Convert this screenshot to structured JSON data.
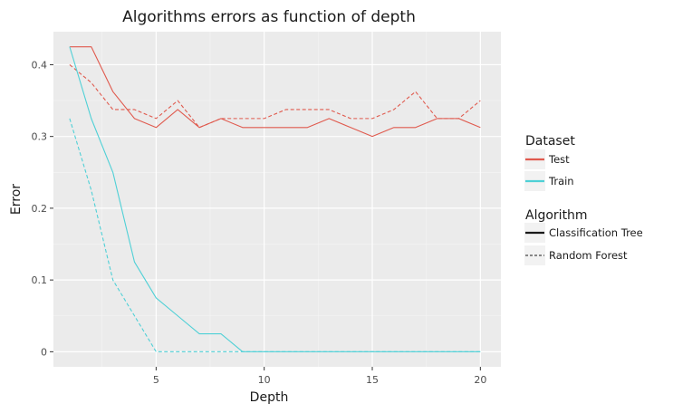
{
  "chart_data": {
    "type": "line",
    "title": "Algorithms errors as function of depth",
    "xlabel": "Depth",
    "ylabel": "Error",
    "xlim": [
      0.25,
      20.95
    ],
    "ylim": [
      -0.021,
      0.446
    ],
    "xticks": [
      5,
      10,
      15,
      20
    ],
    "xtick_labels": [
      "5",
      "10",
      "15",
      "20"
    ],
    "yticks": [
      0,
      0.1,
      0.2,
      0.3,
      0.4
    ],
    "ytick_labels": [
      "0",
      "0.1",
      "0.2",
      "0.3",
      "0.4"
    ],
    "grid": true,
    "legend_position": "right",
    "x": [
      1,
      2,
      3,
      4,
      5,
      6,
      7,
      8,
      9,
      10,
      11,
      12,
      13,
      14,
      15,
      16,
      17,
      18,
      19,
      20
    ],
    "series": [
      {
        "dataset": "Test",
        "algorithm": "Classification Tree",
        "color": "#e05a4e",
        "dash": "solid",
        "values": [
          0.425,
          0.425,
          0.3625,
          0.325,
          0.3125,
          0.3375,
          0.3125,
          0.325,
          0.3125,
          0.3125,
          0.3125,
          0.3125,
          0.325,
          0.3125,
          0.3,
          0.3125,
          0.3125,
          0.325,
          0.325,
          0.3125
        ]
      },
      {
        "dataset": "Test",
        "algorithm": "Random Forest",
        "color": "#e05a4e",
        "dash": "dashed",
        "values": [
          0.4,
          0.375,
          0.3375,
          0.3375,
          0.325,
          0.35,
          0.3125,
          0.325,
          0.325,
          0.325,
          0.3375,
          0.3375,
          0.3375,
          0.325,
          0.325,
          0.3375,
          0.3625,
          0.325,
          0.325,
          0.35
        ]
      },
      {
        "dataset": "Train",
        "algorithm": "Classification Tree",
        "color": "#4fd0d6",
        "dash": "solid",
        "values": [
          0.425,
          0.325,
          0.25,
          0.125,
          0.075,
          0.05,
          0.025,
          0.025,
          0,
          0,
          0,
          0,
          0,
          0,
          0,
          0,
          0,
          0,
          0,
          0
        ]
      },
      {
        "dataset": "Train",
        "algorithm": "Random Forest",
        "color": "#4fd0d6",
        "dash": "dashed",
        "values": [
          0.325,
          0.225,
          0.1,
          0.05,
          0,
          0,
          0,
          0,
          0,
          0,
          0,
          0,
          0,
          0,
          0,
          0,
          0,
          0,
          0,
          0
        ]
      }
    ],
    "legend": {
      "dataset_title": "Dataset",
      "dataset_entries": [
        {
          "label": "Test",
          "color": "#e05a4e"
        },
        {
          "label": "Train",
          "color": "#4fd0d6"
        }
      ],
      "algorithm_title": "Algorithm",
      "algorithm_entries": [
        {
          "label": "Classification Tree",
          "dash": "solid"
        },
        {
          "label": "Random Forest",
          "dash": "dashed"
        }
      ]
    }
  }
}
